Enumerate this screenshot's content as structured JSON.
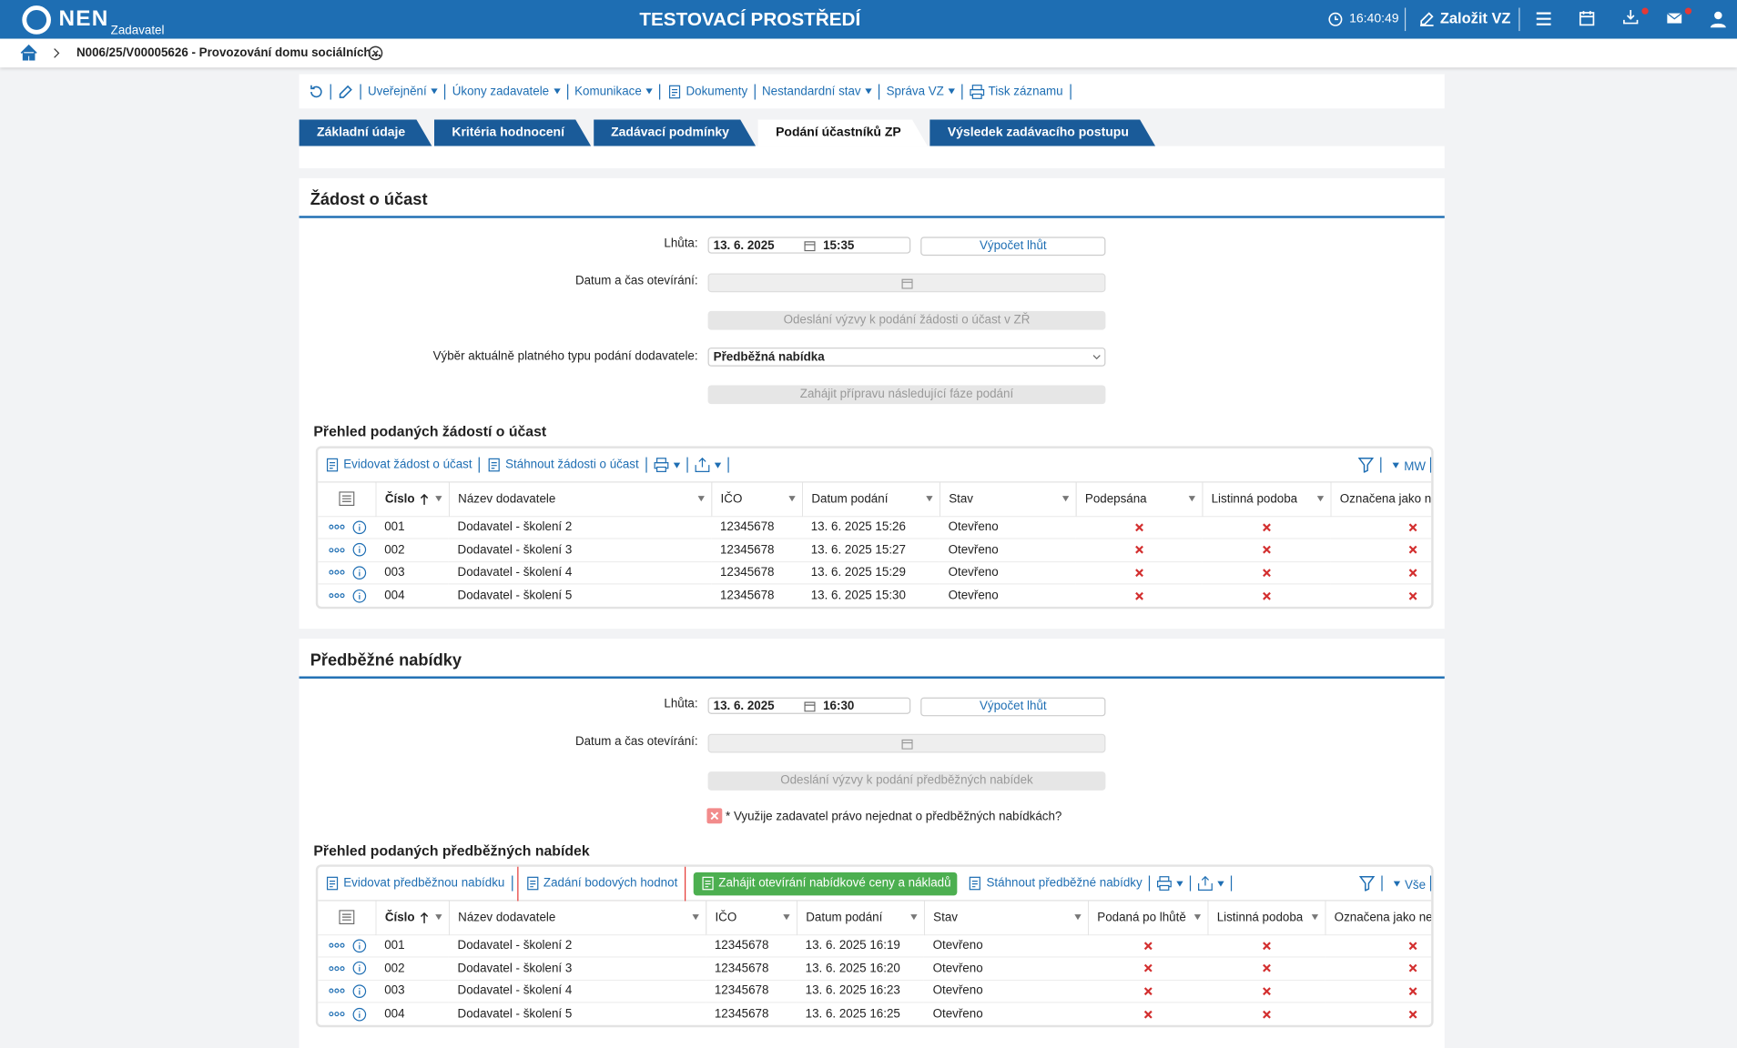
{
  "header": {
    "logo": "NEN",
    "role": "Zadavatel",
    "title": "TESTOVACÍ PROSTŘEDÍ",
    "time": "16:40:49",
    "create": "Založit VZ"
  },
  "breadcrumb": "N006/25/V00005626 - Provozování domu sociálních...",
  "toolbar": [
    {
      "label": "Uveřejnění",
      "menu": true
    },
    {
      "label": "Úkony zadavatele",
      "menu": true
    },
    {
      "label": "Komunikace",
      "menu": true
    },
    {
      "label": "Dokumenty",
      "menu": false
    },
    {
      "label": "Nestandardní stav",
      "menu": true
    },
    {
      "label": "Správa VZ",
      "menu": true
    },
    {
      "label": "Tisk záznamu",
      "menu": false
    }
  ],
  "tabs": {
    "items": [
      "Základní údaje",
      "Kritéria hodnocení",
      "Zadávací podmínky",
      "Podání účastníků ZP",
      "Výsledek zadávacího postupu"
    ],
    "active": 3
  },
  "requests": {
    "title": "Žádost o účast",
    "deadline_label": "Lhůta:",
    "deadline_date": "13. 6. 2025",
    "deadline_time": "15:35",
    "calc": "Výpočet lhůt",
    "opening_label": "Datum a čas otevírání:",
    "send": "Odeslání výzvy k podání žádosti o účast v ZŘ",
    "type_label": "Výběr aktuálně platného typu podání dodavatele:",
    "type_value": "Předběžná nabídka",
    "next": "Zahájit přípravu následující fáze podání",
    "overview": "Přehled podaných žádostí o účast",
    "actions": [
      "Evidovat žádost o účast",
      "Stáhnout žádosti o účast"
    ],
    "filter": "MW",
    "columns": [
      "Číslo",
      "Název dodavatele",
      "IČO",
      "Datum podání",
      "Stav",
      "Podepsána",
      "Listinná podoba",
      "Označena jako ne"
    ],
    "rows": [
      [
        "001",
        "Dodavatel - školení 2",
        "12345678",
        "13. 6. 2025 15:26",
        "Otevřeno"
      ],
      [
        "002",
        "Dodavatel - školení 3",
        "12345678",
        "13. 6. 2025 15:27",
        "Otevřeno"
      ],
      [
        "003",
        "Dodavatel - školení 4",
        "12345678",
        "13. 6. 2025 15:29",
        "Otevřeno"
      ],
      [
        "004",
        "Dodavatel - školení 5",
        "12345678",
        "13. 6. 2025 15:30",
        "Otevřeno"
      ]
    ]
  },
  "offers": {
    "title": "Předběžné nabídky",
    "deadline_label": "Lhůta:",
    "deadline_date": "13. 6. 2025",
    "deadline_time": "16:30",
    "calc": "Výpočet lhůt",
    "opening_label": "Datum a čas otevírání:",
    "send": "Odeslání výzvy k podání předběžných nabídek",
    "question": "* Využije zadavatel právo nejednat o předběžných nabídkách?",
    "overview": "Přehled podaných předběžných nabídek",
    "actions": [
      "Evidovat předběžnou nabídku",
      "Zadání bodových hodnot",
      "Zahájit otevírání nabídkové ceny a nákladů",
      "Stáhnout předběžné nabídky"
    ],
    "filter": "Vše",
    "columns": [
      "Číslo",
      "Název dodavatele",
      "IČO",
      "Datum podání",
      "Stav",
      "Podaná po lhůtě",
      "Listinná podoba",
      "Označena jako nep"
    ],
    "rows": [
      [
        "001",
        "Dodavatel - školení 2",
        "12345678",
        "13. 6. 2025 16:19",
        "Otevřeno"
      ],
      [
        "002",
        "Dodavatel - školení 3",
        "12345678",
        "13. 6. 2025 16:20",
        "Otevřeno"
      ],
      [
        "003",
        "Dodavatel - školení 4",
        "12345678",
        "13. 6. 2025 16:23",
        "Otevřeno"
      ],
      [
        "004",
        "Dodavatel - školení 5",
        "12345678",
        "13. 6. 2025 16:25",
        "Otevřeno"
      ]
    ]
  }
}
